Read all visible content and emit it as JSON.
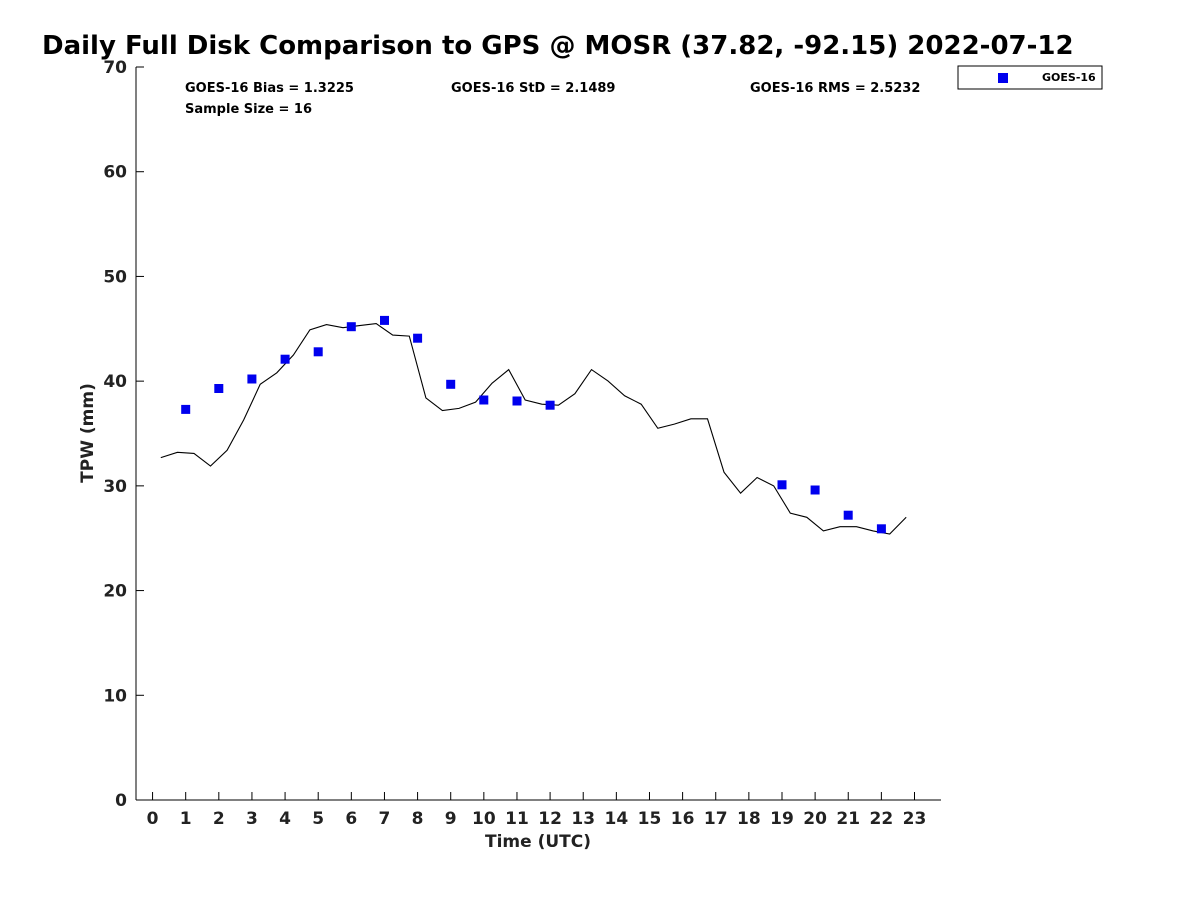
{
  "chart_data": {
    "type": "scatter",
    "title": "Daily Full Disk Comparison to GPS @ MOSR (37.82, -92.15) 2022-07-12",
    "xlabel": "Time (UTC)",
    "ylabel": "TPW (mm)",
    "xlim": [
      -0.5,
      23.8
    ],
    "ylim": [
      0,
      70
    ],
    "xticks": [
      0,
      1,
      2,
      3,
      4,
      5,
      6,
      7,
      8,
      9,
      10,
      11,
      12,
      13,
      14,
      15,
      16,
      17,
      18,
      19,
      20,
      21,
      22,
      23
    ],
    "yticks": [
      0,
      10,
      20,
      30,
      40,
      50,
      60,
      70
    ],
    "grid": false,
    "legend_position": "top-right",
    "stats": {
      "bias": "GOES-16 Bias = 1.3225",
      "std": "GOES-16 StD = 2.1489",
      "rms": "GOES-16 RMS = 2.5232",
      "sample_size": "Sample Size = 16"
    },
    "series": [
      {
        "name": "GOES-16",
        "type": "scatter",
        "color": "#0000ee",
        "x": [
          1,
          2,
          3,
          4,
          5,
          6,
          7,
          8,
          9,
          10,
          11,
          12,
          19,
          20,
          21,
          22
        ],
        "y": [
          37.3,
          39.3,
          40.2,
          42.1,
          42.8,
          45.2,
          45.8,
          44.1,
          39.7,
          38.2,
          38.1,
          37.7,
          30.1,
          29.6,
          27.2,
          25.9
        ]
      },
      {
        "type": "line",
        "color": "#000000",
        "x": [
          0.25,
          0.75,
          1.25,
          1.75,
          2.25,
          2.75,
          3.25,
          3.75,
          4.25,
          4.75,
          5.25,
          5.75,
          6.25,
          6.75,
          7.25,
          7.75,
          8.25,
          8.75,
          9.25,
          9.75,
          10.25,
          10.75,
          11.25,
          11.75,
          12.25,
          12.75,
          13.25,
          13.75,
          14.25,
          14.75,
          15.25,
          15.75,
          16.25,
          16.75,
          17.25,
          17.75,
          18.25,
          18.75,
          19.25,
          19.75,
          20.25,
          20.75,
          21.25,
          21.75,
          22.25,
          22.75
        ],
        "y": [
          32.7,
          33.2,
          33.1,
          31.9,
          33.4,
          36.3,
          39.7,
          40.8,
          42.5,
          44.9,
          45.4,
          45.1,
          45.3,
          45.5,
          44.4,
          44.3,
          38.4,
          37.2,
          37.4,
          38.0,
          39.8,
          41.1,
          38.2,
          37.8,
          37.7,
          38.8,
          41.1,
          40.0,
          38.6,
          37.8,
          35.5,
          35.9,
          36.4,
          36.4,
          31.3,
          29.3,
          30.8,
          30.0,
          27.4,
          27.0,
          25.7,
          26.1,
          26.1,
          25.7,
          25.4,
          27.0
        ]
      }
    ]
  }
}
